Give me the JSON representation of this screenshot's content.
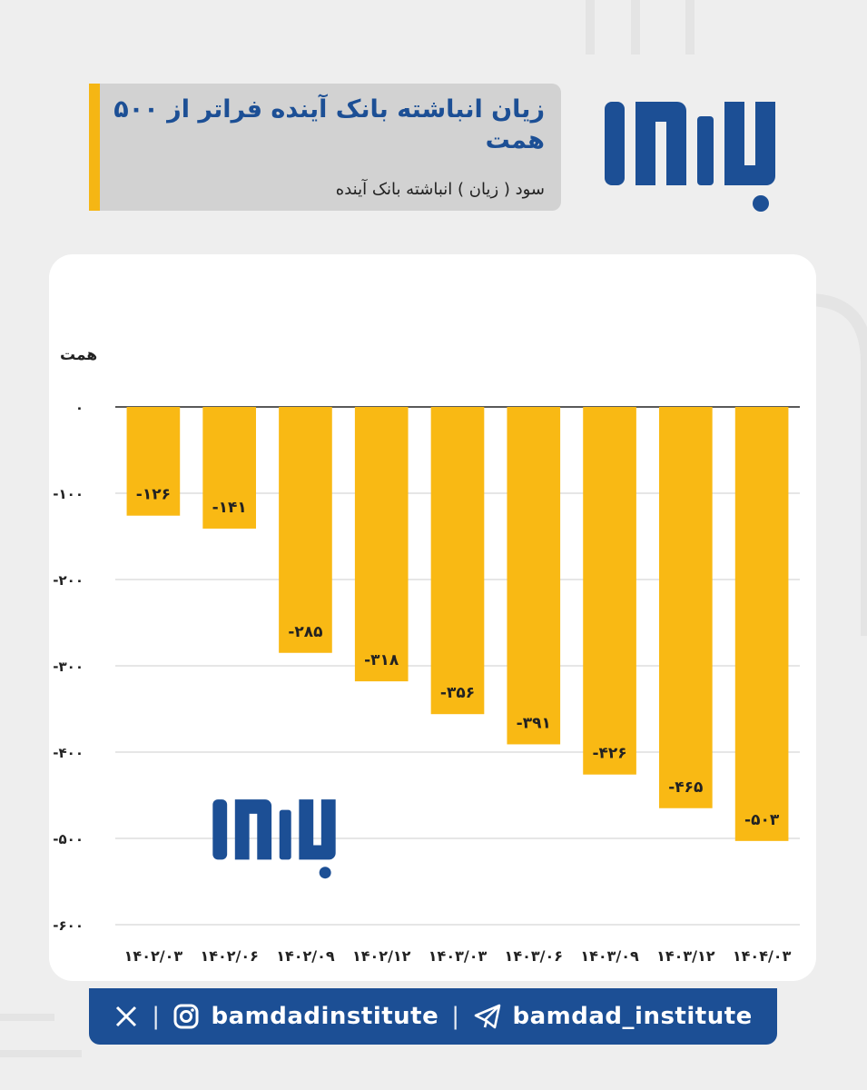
{
  "header": {
    "title": "زیان انباشته بانک آینده فراتر از ۵۰۰ همت",
    "subtitle": "سود ( زیان ) انباشته بانک آینده"
  },
  "brand": {
    "logo_icon": "bamdad-logo-icon",
    "primary_color": "#1c4f95",
    "accent_color": "#f5b614"
  },
  "chart_data": {
    "type": "bar",
    "ylabel": "همت",
    "ylim": [
      -600,
      0
    ],
    "yticks": [
      0,
      -100,
      -200,
      -300,
      -400,
      -500,
      -600
    ],
    "ytick_labels": [
      "۰",
      "-۱۰۰",
      "-۲۰۰",
      "-۳۰۰",
      "-۴۰۰",
      "-۵۰۰",
      "-۶۰۰"
    ],
    "grid": true,
    "bar_color": "#f9b914",
    "categories": [
      "۱۴۰۲/۰۳",
      "۱۴۰۲/۰۶",
      "۱۴۰۲/۰۹",
      "۱۴۰۲/۱۲",
      "۱۴۰۳/۰۳",
      "۱۴۰۳/۰۶",
      "۱۴۰۳/۰۹",
      "۱۴۰۳/۱۲",
      "۱۴۰۴/۰۳"
    ],
    "values": [
      -126,
      -141,
      -285,
      -318,
      -356,
      -391,
      -426,
      -465,
      -503
    ],
    "data_labels": [
      "-۱۲۶",
      "-۱۴۱",
      "-۲۸۵",
      "-۳۱۸",
      "-۳۵۶",
      "-۳۹۱",
      "-۴۲۶",
      "-۴۶۵",
      "-۵۰۳"
    ]
  },
  "footer": {
    "x_icon": "x-twitter-icon",
    "instagram_icon": "instagram-icon",
    "instagram_handle": "bamdadinstitute",
    "separator": "|",
    "telegram_icon": "telegram-icon",
    "telegram_handle": "bamdad_institute"
  }
}
